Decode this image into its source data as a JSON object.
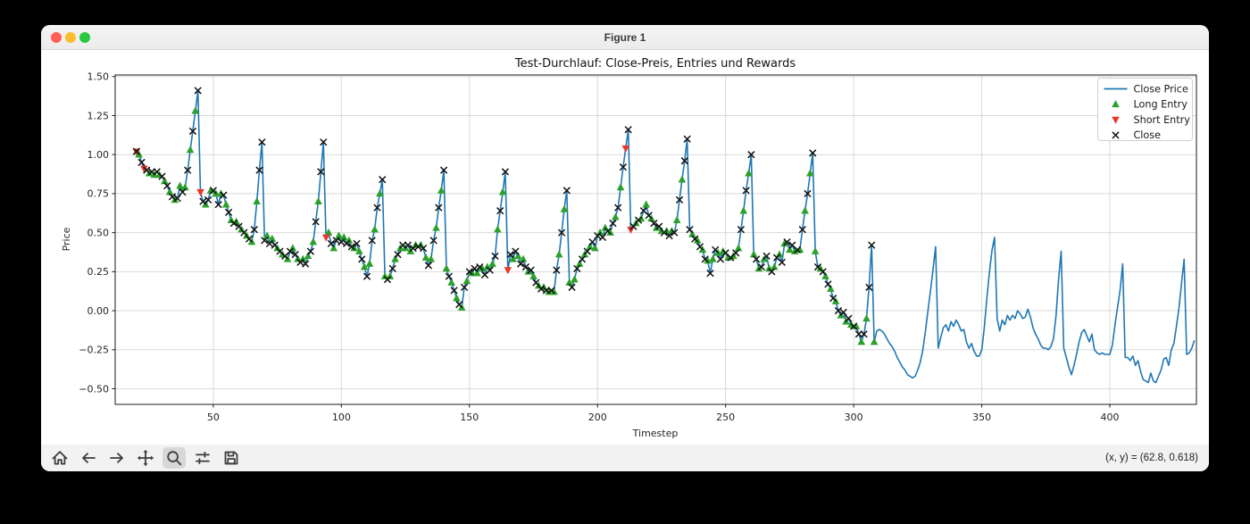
{
  "window": {
    "title": "Figure 1",
    "traffic_lights": [
      "close",
      "minimize",
      "zoom"
    ]
  },
  "chart_data": {
    "type": "line",
    "title": "Test-Durchlauf: Close-Preis, Entries und Rewards",
    "xlabel": "Timestep",
    "ylabel": "Price",
    "grid": true,
    "xlim": [
      11.7,
      433.8
    ],
    "ylim": [
      -0.6,
      1.51
    ],
    "x_axis": {
      "label": "Timestep",
      "tick_values": [
        50,
        100,
        150,
        200,
        250,
        300,
        350,
        400
      ],
      "tick_labels": [
        "50",
        "100",
        "150",
        "200",
        "250",
        "300",
        "350",
        "400"
      ]
    },
    "y_axis": {
      "label": "Price",
      "tick_values": [
        -0.5,
        -0.25,
        0.0,
        0.25,
        0.5,
        0.75,
        1.0,
        1.25,
        1.5
      ],
      "tick_labels": [
        "−0.50",
        "−0.25",
        "0.00",
        "0.25",
        "0.50",
        "0.75",
        "1.00",
        "1.25",
        "1.50"
      ]
    },
    "legend": {
      "position": "upper right",
      "entries": [
        {
          "label": "Close Price",
          "marker": "line",
          "color": "#1f77b4"
        },
        {
          "label": "Long Entry",
          "marker": "triangle-up",
          "color": "#2ca02c"
        },
        {
          "label": "Short Entry",
          "marker": "triangle-down",
          "color": "#e8392b"
        },
        {
          "label": "Close",
          "marker": "x",
          "color": "#111111"
        }
      ]
    },
    "series": {
      "line": {
        "name": "Close Price",
        "color": "#1f77b4",
        "t_start": 20,
        "t_step": 1,
        "values": [
          1.02,
          1.0,
          0.95,
          0.91,
          0.9,
          0.88,
          0.89,
          0.87,
          0.89,
          0.87,
          0.86,
          0.83,
          0.8,
          0.76,
          0.73,
          0.71,
          0.72,
          0.8,
          0.76,
          0.79,
          0.9,
          1.03,
          1.15,
          1.28,
          1.41,
          0.76,
          0.7,
          0.68,
          0.71,
          0.77,
          0.77,
          0.75,
          0.68,
          0.75,
          0.74,
          0.68,
          0.63,
          0.58,
          0.56,
          0.57,
          0.54,
          0.52,
          0.5,
          0.48,
          0.46,
          0.44,
          0.52,
          0.7,
          0.9,
          1.08,
          0.45,
          0.48,
          0.43,
          0.46,
          0.42,
          0.4,
          0.38,
          0.36,
          0.35,
          0.33,
          0.38,
          0.4,
          0.36,
          0.33,
          0.31,
          0.33,
          0.3,
          0.35,
          0.38,
          0.44,
          0.57,
          0.7,
          0.89,
          1.08,
          0.47,
          0.5,
          0.43,
          0.4,
          0.45,
          0.48,
          0.44,
          0.47,
          0.43,
          0.45,
          0.41,
          0.4,
          0.43,
          0.38,
          0.33,
          0.28,
          0.22,
          0.3,
          0.45,
          0.52,
          0.66,
          0.75,
          0.84,
          0.22,
          0.2,
          0.22,
          0.27,
          0.33,
          0.36,
          0.4,
          0.42,
          0.4,
          0.42,
          0.38,
          0.4,
          0.42,
          0.41,
          0.42,
          0.4,
          0.34,
          0.29,
          0.33,
          0.45,
          0.53,
          0.66,
          0.77,
          0.9,
          0.27,
          0.22,
          0.18,
          0.13,
          0.08,
          0.04,
          0.02,
          0.15,
          0.19,
          0.25,
          0.24,
          0.27,
          0.24,
          0.28,
          0.27,
          0.23,
          0.28,
          0.26,
          0.3,
          0.35,
          0.52,
          0.64,
          0.76,
          0.89,
          0.26,
          0.36,
          0.33,
          0.38,
          0.35,
          0.3,
          0.33,
          0.28,
          0.25,
          0.26,
          0.22,
          0.18,
          0.16,
          0.14,
          0.15,
          0.13,
          0.12,
          0.13,
          0.12,
          0.26,
          0.36,
          0.5,
          0.65,
          0.77,
          0.18,
          0.15,
          0.2,
          0.27,
          0.3,
          0.33,
          0.36,
          0.38,
          0.41,
          0.44,
          0.4,
          0.48,
          0.5,
          0.47,
          0.53,
          0.51,
          0.5,
          0.56,
          0.6,
          0.66,
          0.79,
          0.92,
          1.04,
          1.16,
          0.52,
          0.54,
          0.56,
          0.58,
          0.59,
          0.64,
          0.68,
          0.61,
          0.59,
          0.56,
          0.53,
          0.54,
          0.51,
          0.5,
          0.51,
          0.48,
          0.51,
          0.5,
          0.58,
          0.71,
          0.84,
          0.96,
          1.1,
          0.52,
          0.49,
          0.46,
          0.45,
          0.41,
          0.39,
          0.33,
          0.32,
          0.24,
          0.33,
          0.39,
          0.37,
          0.33,
          0.38,
          0.37,
          0.34,
          0.34,
          0.35,
          0.37,
          0.4,
          0.52,
          0.64,
          0.77,
          0.88,
          1.0,
          0.36,
          0.33,
          0.27,
          0.28,
          0.33,
          0.35,
          0.27,
          0.25,
          0.28,
          0.34,
          0.36,
          0.31,
          0.43,
          0.44,
          0.39,
          0.42,
          0.38,
          0.39,
          0.39,
          0.52,
          0.64,
          0.75,
          0.88,
          1.01,
          0.38,
          0.28,
          0.27,
          0.25,
          0.22,
          0.17,
          0.14,
          0.08,
          0.06,
          0.0,
          -0.03,
          -0.01,
          -0.07,
          -0.05,
          -0.09,
          -0.1,
          -0.1,
          -0.15,
          -0.2,
          -0.15,
          -0.05,
          0.15,
          0.42,
          -0.2,
          -0.13,
          -0.12,
          -0.13,
          -0.15,
          -0.18,
          -0.21,
          -0.23,
          -0.26,
          -0.3,
          -0.33,
          -0.36,
          -0.38,
          -0.41,
          -0.42,
          -0.43,
          -0.42,
          -0.38,
          -0.33,
          -0.25,
          -0.13,
          0.0,
          0.13,
          0.27,
          0.41,
          -0.24,
          -0.17,
          -0.11,
          -0.09,
          -0.13,
          -0.07,
          -0.1,
          -0.06,
          -0.09,
          -0.13,
          -0.12,
          -0.2,
          -0.24,
          -0.21,
          -0.26,
          -0.29,
          -0.29,
          -0.25,
          -0.11,
          0.08,
          0.25,
          0.39,
          0.47,
          -0.05,
          -0.13,
          -0.06,
          -0.09,
          -0.03,
          -0.06,
          -0.03,
          -0.05,
          0.0,
          -0.02,
          -0.05,
          -0.04,
          0.01,
          -0.04,
          -0.11,
          -0.15,
          -0.18,
          -0.22,
          -0.24,
          -0.24,
          -0.25,
          -0.23,
          -0.18,
          -0.03,
          0.2,
          0.38,
          -0.24,
          -0.3,
          -0.36,
          -0.41,
          -0.35,
          -0.28,
          -0.2,
          -0.14,
          -0.12,
          -0.16,
          -0.2,
          -0.15,
          -0.25,
          -0.27,
          -0.28,
          -0.27,
          -0.28,
          -0.28,
          -0.28,
          -0.22,
          -0.09,
          0.02,
          0.13,
          0.3,
          -0.3,
          -0.3,
          -0.32,
          -0.29,
          -0.35,
          -0.32,
          -0.39,
          -0.44,
          -0.45,
          -0.46,
          -0.4,
          -0.45,
          -0.46,
          -0.42,
          -0.38,
          -0.31,
          -0.3,
          -0.35,
          -0.25,
          -0.21,
          -0.1,
          0.02,
          0.18,
          0.33,
          -0.28,
          -0.27,
          -0.24,
          -0.19
        ]
      },
      "long_entries": {
        "name": "Long Entry",
        "color": "#2ca02c",
        "marker": "triangle-up",
        "t": [
          21,
          25,
          27,
          29,
          31,
          33,
          35,
          37,
          39,
          41,
          43,
          47,
          49,
          51,
          53,
          55,
          57,
          59,
          61,
          63,
          65,
          67,
          71,
          73,
          75,
          77,
          79,
          81,
          83,
          85,
          87,
          89,
          91,
          95,
          97,
          99,
          101,
          103,
          105,
          107,
          109,
          111,
          113,
          115,
          117,
          119,
          121,
          123,
          125,
          127,
          129,
          131,
          133,
          135,
          137,
          139,
          141,
          143,
          145,
          147,
          149,
          151,
          153,
          155,
          157,
          159,
          161,
          163,
          167,
          169,
          171,
          173,
          175,
          177,
          179,
          181,
          183,
          185,
          187,
          189,
          191,
          193,
          195,
          197,
          199,
          201,
          203,
          205,
          207,
          209,
          215,
          217,
          219,
          221,
          223,
          225,
          227,
          229,
          231,
          233,
          237,
          239,
          241,
          243,
          245,
          247,
          249,
          251,
          253,
          255,
          257,
          259,
          261,
          263,
          265,
          267,
          269,
          271,
          273,
          275,
          277,
          279,
          281,
          283,
          285,
          287,
          289,
          291,
          293,
          295,
          297,
          299,
          301,
          303,
          305,
          308
        ]
      },
      "short_entries": {
        "name": "Short Entry",
        "color": "#e8392b",
        "marker": "triangle-down",
        "t": [
          20,
          23,
          45,
          94,
          165,
          211,
          213
        ]
      },
      "closes": {
        "name": "Close",
        "color": "#111111",
        "marker": "x",
        "t": [
          20,
          22,
          24,
          26,
          28,
          30,
          32,
          34,
          36,
          38,
          40,
          42,
          44,
          46,
          48,
          50,
          52,
          54,
          56,
          58,
          60,
          62,
          64,
          66,
          68,
          69,
          70,
          72,
          74,
          76,
          78,
          80,
          82,
          84,
          86,
          88,
          90,
          92,
          93,
          96,
          98,
          100,
          102,
          104,
          106,
          108,
          110,
          112,
          114,
          116,
          118,
          120,
          122,
          124,
          126,
          128,
          130,
          132,
          134,
          136,
          138,
          140,
          142,
          144,
          146,
          148,
          150,
          152,
          154,
          156,
          158,
          160,
          162,
          164,
          166,
          168,
          170,
          172,
          174,
          176,
          178,
          180,
          182,
          184,
          186,
          188,
          190,
          192,
          194,
          196,
          198,
          200,
          202,
          204,
          206,
          208,
          210,
          212,
          214,
          216,
          218,
          220,
          222,
          224,
          226,
          228,
          230,
          232,
          234,
          235,
          236,
          238,
          240,
          242,
          244,
          246,
          248,
          250,
          252,
          254,
          256,
          258,
          260,
          262,
          264,
          266,
          268,
          270,
          272,
          274,
          276,
          278,
          280,
          282,
          284,
          286,
          288,
          290,
          292,
          294,
          296,
          298,
          300,
          302,
          304,
          306,
          307
        ]
      }
    }
  },
  "toolbar": {
    "buttons": [
      {
        "name": "home",
        "icon": "home-icon"
      },
      {
        "name": "back",
        "icon": "arrow-left-icon"
      },
      {
        "name": "forward",
        "icon": "arrow-right-icon"
      },
      {
        "name": "pan",
        "icon": "move-icon"
      },
      {
        "name": "zoom",
        "icon": "magnifier-icon"
      },
      {
        "name": "configure-subplots",
        "icon": "sliders-icon"
      },
      {
        "name": "save",
        "icon": "floppy-icon"
      }
    ],
    "active_button": "zoom",
    "status_text": "(x, y) = (62.8, 0.618)"
  }
}
